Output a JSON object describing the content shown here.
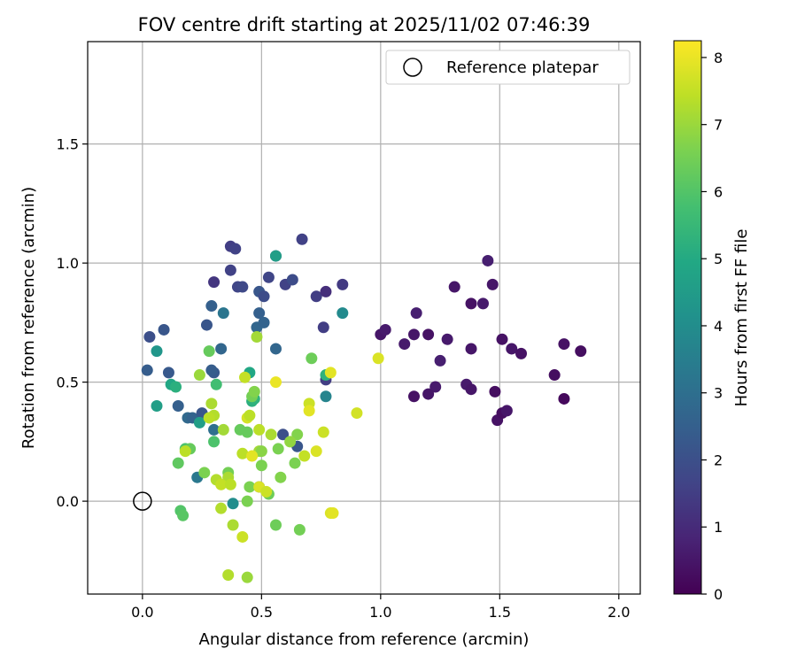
{
  "chart_data": {
    "type": "scatter",
    "title": "FOV centre drift starting at 2025/11/02 07:46:39",
    "xlabel": "Angular distance from reference (arcmin)",
    "ylabel": "Rotation from reference (arcmin)",
    "xlim": [
      -0.23,
      2.09
    ],
    "ylim": [
      -0.39,
      1.93
    ],
    "xticks": [
      0.0,
      0.5,
      1.0,
      1.5,
      2.0
    ],
    "xtick_labels": [
      "0.0",
      "0.5",
      "1.0",
      "1.5",
      "2.0"
    ],
    "yticks": [
      0.0,
      0.5,
      1.0,
      1.5
    ],
    "ytick_labels": [
      "0.0",
      "0.5",
      "1.0",
      "1.5"
    ],
    "grid": true,
    "legend": {
      "position": "top-right",
      "entries": [
        {
          "label": "Reference platepar",
          "marker": "open-circle"
        }
      ]
    },
    "reference_point": {
      "x": 0.0,
      "y": 0.0
    },
    "colorbar": {
      "label": "Hours from first FF file",
      "min": 0,
      "max": 8.25,
      "ticks": [
        0,
        1,
        2,
        3,
        4,
        5,
        6,
        7,
        8
      ],
      "tick_labels": [
        "0",
        "1",
        "2",
        "3",
        "4",
        "5",
        "6",
        "7",
        "8"
      ],
      "colormap": "viridis"
    },
    "series": [
      {
        "name": "FOV centre drift",
        "points": [
          {
            "x": 1.0,
            "y": 0.7,
            "t": 0.5
          },
          {
            "x": 1.02,
            "y": 0.72,
            "t": 0.6
          },
          {
            "x": 1.1,
            "y": 0.66,
            "t": 0.6
          },
          {
            "x": 1.15,
            "y": 0.79,
            "t": 0.7
          },
          {
            "x": 1.14,
            "y": 0.7,
            "t": 0.5
          },
          {
            "x": 1.2,
            "y": 0.7,
            "t": 0.4
          },
          {
            "x": 1.28,
            "y": 0.68,
            "t": 0.6
          },
          {
            "x": 1.31,
            "y": 0.9,
            "t": 0.5
          },
          {
            "x": 1.25,
            "y": 0.59,
            "t": 0.7
          },
          {
            "x": 1.23,
            "y": 0.48,
            "t": 0.6
          },
          {
            "x": 1.2,
            "y": 0.45,
            "t": 0.5
          },
          {
            "x": 1.14,
            "y": 0.44,
            "t": 0.4
          },
          {
            "x": 1.36,
            "y": 0.49,
            "t": 0.6
          },
          {
            "x": 1.38,
            "y": 0.47,
            "t": 0.5
          },
          {
            "x": 1.38,
            "y": 0.83,
            "t": 0.4
          },
          {
            "x": 1.38,
            "y": 0.64,
            "t": 0.5
          },
          {
            "x": 1.43,
            "y": 0.83,
            "t": 0.6
          },
          {
            "x": 1.45,
            "y": 1.01,
            "t": 0.7
          },
          {
            "x": 1.47,
            "y": 0.91,
            "t": 0.5
          },
          {
            "x": 1.48,
            "y": 0.46,
            "t": 0.3
          },
          {
            "x": 1.49,
            "y": 0.34,
            "t": 0.4
          },
          {
            "x": 1.51,
            "y": 0.37,
            "t": 0.3
          },
          {
            "x": 1.53,
            "y": 0.38,
            "t": 0.5
          },
          {
            "x": 1.51,
            "y": 0.68,
            "t": 0.4
          },
          {
            "x": 1.55,
            "y": 0.64,
            "t": 0.5
          },
          {
            "x": 1.59,
            "y": 0.62,
            "t": 0.4
          },
          {
            "x": 1.73,
            "y": 0.53,
            "t": 0.3
          },
          {
            "x": 1.77,
            "y": 0.66,
            "t": 0.4
          },
          {
            "x": 1.77,
            "y": 0.43,
            "t": 0.2
          },
          {
            "x": 1.84,
            "y": 0.63,
            "t": 0.3
          },
          {
            "x": 0.3,
            "y": 0.92,
            "t": 1.3
          },
          {
            "x": 0.37,
            "y": 1.07,
            "t": 1.5
          },
          {
            "x": 0.39,
            "y": 1.06,
            "t": 1.6
          },
          {
            "x": 0.37,
            "y": 0.97,
            "t": 1.6
          },
          {
            "x": 0.4,
            "y": 0.9,
            "t": 1.7
          },
          {
            "x": 0.42,
            "y": 0.9,
            "t": 1.8
          },
          {
            "x": 0.49,
            "y": 0.88,
            "t": 2.2
          },
          {
            "x": 0.51,
            "y": 0.86,
            "t": 1.9
          },
          {
            "x": 0.53,
            "y": 0.94,
            "t": 1.7
          },
          {
            "x": 0.56,
            "y": 1.03,
            "t": 1.8
          },
          {
            "x": 0.6,
            "y": 0.91,
            "t": 1.6
          },
          {
            "x": 0.63,
            "y": 0.93,
            "t": 1.9
          },
          {
            "x": 0.67,
            "y": 1.1,
            "t": 1.6
          },
          {
            "x": 0.73,
            "y": 0.86,
            "t": 1.5
          },
          {
            "x": 0.77,
            "y": 0.88,
            "t": 1.1
          },
          {
            "x": 0.84,
            "y": 0.91,
            "t": 1.4
          },
          {
            "x": 0.76,
            "y": 0.73,
            "t": 1.5
          },
          {
            "x": 0.77,
            "y": 0.51,
            "t": 1.5
          },
          {
            "x": 0.03,
            "y": 0.69,
            "t": 2.0
          },
          {
            "x": 0.09,
            "y": 0.72,
            "t": 2.2
          },
          {
            "x": 0.02,
            "y": 0.55,
            "t": 2.4
          },
          {
            "x": 0.11,
            "y": 0.54,
            "t": 2.3
          },
          {
            "x": 0.15,
            "y": 0.4,
            "t": 2.5
          },
          {
            "x": 0.19,
            "y": 0.35,
            "t": 2.8
          },
          {
            "x": 0.21,
            "y": 0.35,
            "t": 2.6
          },
          {
            "x": 0.25,
            "y": 0.37,
            "t": 2.2
          },
          {
            "x": 0.27,
            "y": 0.74,
            "t": 2.2
          },
          {
            "x": 0.29,
            "y": 0.82,
            "t": 2.5
          },
          {
            "x": 0.3,
            "y": 0.54,
            "t": 2.3
          },
          {
            "x": 0.29,
            "y": 0.55,
            "t": 2.4
          },
          {
            "x": 0.33,
            "y": 0.64,
            "t": 2.7
          },
          {
            "x": 0.34,
            "y": 0.79,
            "t": 3.2
          },
          {
            "x": 0.48,
            "y": 0.73,
            "t": 2.7
          },
          {
            "x": 0.49,
            "y": 0.79,
            "t": 2.5
          },
          {
            "x": 0.51,
            "y": 0.75,
            "t": 2.6
          },
          {
            "x": 0.56,
            "y": 0.64,
            "t": 2.7
          },
          {
            "x": 0.59,
            "y": 0.28,
            "t": 2.0
          },
          {
            "x": 0.65,
            "y": 0.23,
            "t": 2.2
          },
          {
            "x": 0.49,
            "y": 0.06,
            "t": 2.0
          },
          {
            "x": 0.23,
            "y": 0.1,
            "t": 3.3
          },
          {
            "x": 0.3,
            "y": 0.3,
            "t": 3.0
          },
          {
            "x": 0.36,
            "y": 0.08,
            "t": 3.0
          },
          {
            "x": 0.38,
            "y": -0.01,
            "t": 4.0
          },
          {
            "x": 0.56,
            "y": 1.03,
            "t": 4.6
          },
          {
            "x": 0.84,
            "y": 0.79,
            "t": 3.9
          },
          {
            "x": 0.77,
            "y": 0.44,
            "t": 3.7
          },
          {
            "x": 0.06,
            "y": 0.63,
            "t": 4.3
          },
          {
            "x": 0.06,
            "y": 0.4,
            "t": 4.6
          },
          {
            "x": 0.12,
            "y": 0.49,
            "t": 4.9
          },
          {
            "x": 0.14,
            "y": 0.48,
            "t": 5.2
          },
          {
            "x": 0.24,
            "y": 0.33,
            "t": 4.6
          },
          {
            "x": 0.45,
            "y": 0.54,
            "t": 4.9
          },
          {
            "x": 0.46,
            "y": 0.42,
            "t": 5.2
          },
          {
            "x": 0.47,
            "y": 0.43,
            "t": 5.3
          },
          {
            "x": 0.77,
            "y": 0.53,
            "t": 5.3
          },
          {
            "x": 0.31,
            "y": 0.49,
            "t": 5.7
          },
          {
            "x": 0.3,
            "y": 0.25,
            "t": 5.9
          },
          {
            "x": 0.28,
            "y": 0.63,
            "t": 6.3
          },
          {
            "x": 0.18,
            "y": 0.22,
            "t": 5.9
          },
          {
            "x": 0.2,
            "y": 0.22,
            "t": 6.3
          },
          {
            "x": 0.15,
            "y": 0.16,
            "t": 6.2
          },
          {
            "x": 0.16,
            "y": -0.04,
            "t": 6.0
          },
          {
            "x": 0.17,
            "y": -0.06,
            "t": 6.1
          },
          {
            "x": 0.26,
            "y": 0.12,
            "t": 6.6
          },
          {
            "x": 0.36,
            "y": 0.12,
            "t": 6.5
          },
          {
            "x": 0.41,
            "y": 0.3,
            "t": 6.3
          },
          {
            "x": 0.44,
            "y": 0.29,
            "t": 6.3
          },
          {
            "x": 0.46,
            "y": 0.44,
            "t": 6.5
          },
          {
            "x": 0.47,
            "y": 0.46,
            "t": 6.7
          },
          {
            "x": 0.5,
            "y": 0.15,
            "t": 6.6
          },
          {
            "x": 0.53,
            "y": 0.03,
            "t": 6.4
          },
          {
            "x": 0.56,
            "y": -0.1,
            "t": 6.4
          },
          {
            "x": 0.58,
            "y": 0.1,
            "t": 6.7
          },
          {
            "x": 0.64,
            "y": 0.16,
            "t": 6.6
          },
          {
            "x": 0.66,
            "y": -0.12,
            "t": 6.5
          },
          {
            "x": 0.71,
            "y": 0.6,
            "t": 6.4
          },
          {
            "x": 0.65,
            "y": 0.28,
            "t": 6.7
          },
          {
            "x": 0.62,
            "y": 0.25,
            "t": 6.9
          },
          {
            "x": 0.57,
            "y": 0.22,
            "t": 6.6
          },
          {
            "x": 0.45,
            "y": 0.06,
            "t": 6.6
          },
          {
            "x": 0.44,
            "y": 0.0,
            "t": 6.6
          },
          {
            "x": 0.49,
            "y": 0.21,
            "t": 7.1
          },
          {
            "x": 0.5,
            "y": 0.21,
            "t": 6.8
          },
          {
            "x": 0.48,
            "y": 0.69,
            "t": 7.1
          },
          {
            "x": 0.24,
            "y": 0.53,
            "t": 7.0
          },
          {
            "x": 0.29,
            "y": 0.41,
            "t": 7.2
          },
          {
            "x": 0.3,
            "y": 0.36,
            "t": 7.3
          },
          {
            "x": 0.28,
            "y": 0.35,
            "t": 7.4
          },
          {
            "x": 0.34,
            "y": 0.3,
            "t": 7.1
          },
          {
            "x": 0.36,
            "y": 0.1,
            "t": 7.2
          },
          {
            "x": 0.31,
            "y": 0.09,
            "t": 7.3
          },
          {
            "x": 0.33,
            "y": 0.07,
            "t": 7.5
          },
          {
            "x": 0.37,
            "y": 0.07,
            "t": 7.4
          },
          {
            "x": 0.33,
            "y": -0.03,
            "t": 7.3
          },
          {
            "x": 0.38,
            "y": -0.1,
            "t": 7.2
          },
          {
            "x": 0.36,
            "y": -0.31,
            "t": 7.3
          },
          {
            "x": 0.44,
            "y": -0.32,
            "t": 7.0
          },
          {
            "x": 0.42,
            "y": -0.15,
            "t": 7.6
          },
          {
            "x": 0.42,
            "y": 0.2,
            "t": 7.4
          },
          {
            "x": 0.43,
            "y": 0.52,
            "t": 7.5
          },
          {
            "x": 0.44,
            "y": 0.35,
            "t": 7.7
          },
          {
            "x": 0.45,
            "y": 0.36,
            "t": 7.4
          },
          {
            "x": 0.49,
            "y": 0.3,
            "t": 7.4
          },
          {
            "x": 0.54,
            "y": 0.28,
            "t": 7.2
          },
          {
            "x": 0.46,
            "y": 0.19,
            "t": 7.9
          },
          {
            "x": 0.49,
            "y": 0.06,
            "t": 7.8
          },
          {
            "x": 0.52,
            "y": 0.04,
            "t": 7.6
          },
          {
            "x": 0.56,
            "y": 0.5,
            "t": 8.0
          },
          {
            "x": 0.7,
            "y": 0.41,
            "t": 7.6
          },
          {
            "x": 0.7,
            "y": 0.38,
            "t": 7.9
          },
          {
            "x": 0.76,
            "y": 0.29,
            "t": 7.6
          },
          {
            "x": 0.73,
            "y": 0.21,
            "t": 7.8
          },
          {
            "x": 0.68,
            "y": 0.19,
            "t": 7.5
          },
          {
            "x": 0.79,
            "y": 0.54,
            "t": 7.9
          },
          {
            "x": 0.79,
            "y": -0.05,
            "t": 7.8
          },
          {
            "x": 0.8,
            "y": -0.05,
            "t": 7.9
          },
          {
            "x": 0.9,
            "y": 0.37,
            "t": 7.7
          },
          {
            "x": 0.99,
            "y": 0.6,
            "t": 7.8
          },
          {
            "x": 0.18,
            "y": 0.21,
            "t": 7.4
          }
        ]
      }
    ]
  }
}
